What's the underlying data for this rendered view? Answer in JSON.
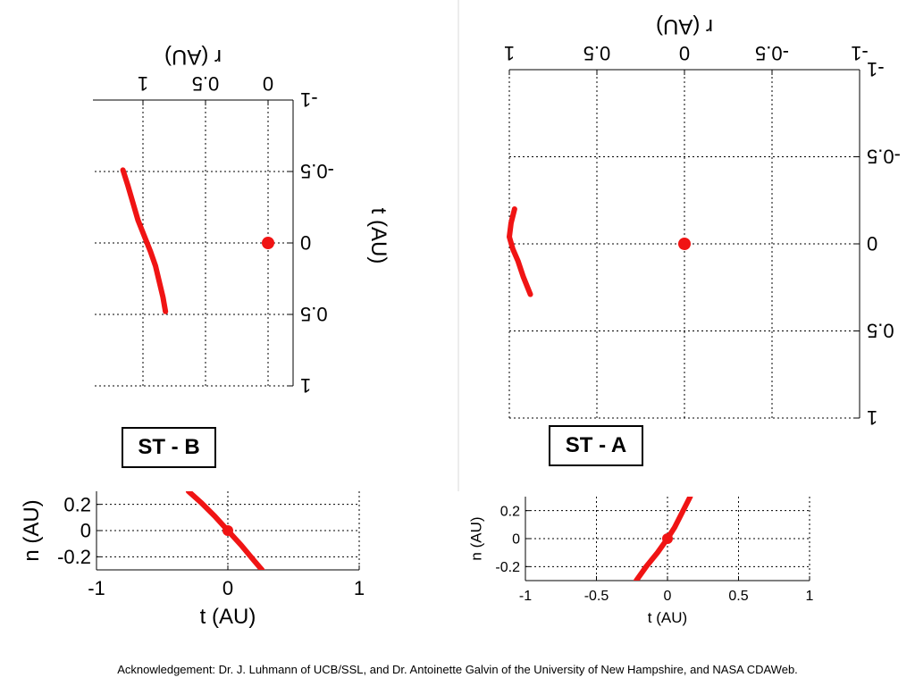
{
  "colors": {
    "curve": "#f01414",
    "axes": "#000000"
  },
  "panel_labels": {
    "stb": "ST - B",
    "sta": "ST - A"
  },
  "acknowledgement": "Acknowledgement: Dr. J. Luhmann of UCB/SSL, and Dr. Antoinette Galvin of the University of New Hampshire, and NASA CDAWeb.",
  "chart_data": [
    {
      "type": "line",
      "panel": "ST-B top view",
      "rotated_180": true,
      "xlabel": "r (AU)",
      "ylabel": "t (AU)",
      "x_ticks": [
        "0",
        "0.5",
        "1"
      ],
      "y_ticks": [
        "-1",
        "-0.5",
        "0",
        "0.5",
        "1"
      ],
      "xlim": [
        -0.2,
        1.4
      ],
      "ylim": [
        -1,
        1
      ],
      "grid": true,
      "series": [
        {
          "x": [
            0.82,
            0.84,
            0.87,
            0.9,
            0.94,
            0.99,
            1.04,
            1.08,
            1.12,
            1.16
          ],
          "y": [
            0.48,
            0.38,
            0.27,
            0.16,
            0.06,
            -0.05,
            -0.16,
            -0.28,
            -0.4,
            -0.51
          ]
        }
      ],
      "points": [
        {
          "x": 0.0,
          "y": 0.0
        }
      ]
    },
    {
      "type": "line",
      "panel": "ST-A top view",
      "rotated_180": true,
      "xlabel": "r (AU)",
      "ylabel": "",
      "x_ticks": [
        "-1",
        "-0.5",
        "0",
        "0.5",
        "1"
      ],
      "y_ticks": [
        "-1",
        "-0.5",
        "0",
        "0.5",
        "1"
      ],
      "xlim": [
        -1,
        1
      ],
      "ylim": [
        -1,
        1
      ],
      "grid": true,
      "series": [
        {
          "x": [
            0.88,
            0.92,
            0.95,
            0.98,
            1.0,
            0.99,
            0.97
          ],
          "y": [
            0.29,
            0.19,
            0.1,
            0.03,
            -0.04,
            -0.12,
            -0.2
          ]
        }
      ],
      "points": [
        {
          "x": 0.0,
          "y": 0.0
        }
      ]
    },
    {
      "type": "line",
      "panel": "ST-B side view",
      "xlabel": "t (AU)",
      "ylabel": "n (AU)",
      "x_ticks": [
        "-1",
        "0",
        "1"
      ],
      "y_ticks": [
        "0.2",
        "0",
        "-0.2"
      ],
      "xlim": [
        -1,
        1
      ],
      "ylim": [
        -0.3,
        0.3
      ],
      "grid": true,
      "series": [
        {
          "x": [
            -0.3,
            -0.2,
            -0.1,
            0.0,
            0.1,
            0.2,
            0.26
          ],
          "y": [
            0.3,
            0.21,
            0.11,
            0.0,
            -0.11,
            -0.23,
            -0.3
          ]
        }
      ],
      "points": [
        {
          "x": 0.0,
          "y": 0.0
        }
      ]
    },
    {
      "type": "line",
      "panel": "ST-A side view",
      "xlabel": "t (AU)",
      "ylabel": "n (AU)",
      "x_ticks": [
        "-1",
        "-0.5",
        "0",
        "0.5",
        "1"
      ],
      "y_ticks": [
        "0.2",
        "0",
        "-0.2"
      ],
      "xlim": [
        -1,
        1
      ],
      "ylim": [
        -0.3,
        0.3
      ],
      "grid": true,
      "series": [
        {
          "x": [
            -0.22,
            -0.15,
            -0.07,
            0.0,
            0.05,
            0.1,
            0.16
          ],
          "y": [
            -0.3,
            -0.2,
            -0.1,
            0.0,
            0.08,
            0.18,
            0.3
          ]
        }
      ],
      "points": [
        {
          "x": 0.0,
          "y": 0.0
        }
      ]
    }
  ]
}
